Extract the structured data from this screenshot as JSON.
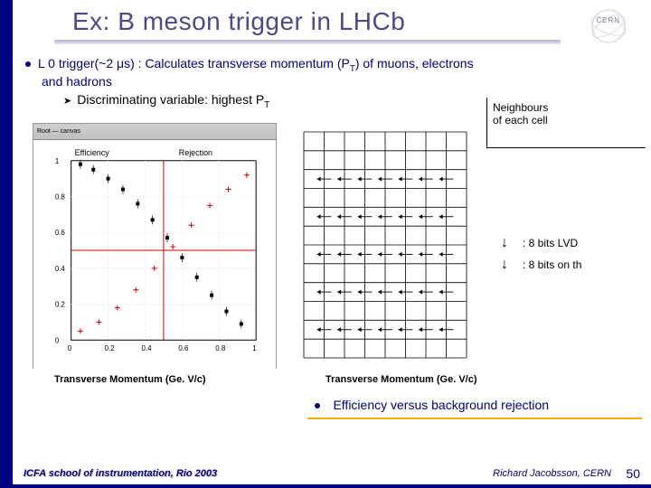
{
  "title": "Ex: B meson trigger in LHCb",
  "cern_label": "CERN",
  "bullet": {
    "line1_a": "L 0 trigger(~2 ",
    "line1_b": "s) : Calculates transverse momentum (P",
    "line1_c": ") of muons, electrons",
    "line2": "and hadrons",
    "sub": "Discriminating variable: highest P",
    "sub_sub": "T",
    "pt_sub": "T",
    "mu": "μ"
  },
  "chart_left": {
    "toolbar": "Root — canvas",
    "y_label": "Efficiency",
    "y2_label": "Rejection",
    "x_ticks": [
      "0",
      "0.2",
      "0.4",
      "0.6",
      "0.8",
      "1"
    ],
    "y_ticks": [
      "0",
      "0.2",
      "0.4",
      "0.6",
      "0.8",
      "1"
    ],
    "eff_points": [
      {
        "x": 0.05,
        "y": 0.98
      },
      {
        "x": 0.12,
        "y": 0.95
      },
      {
        "x": 0.2,
        "y": 0.9
      },
      {
        "x": 0.28,
        "y": 0.84
      },
      {
        "x": 0.36,
        "y": 0.76
      },
      {
        "x": 0.44,
        "y": 0.67
      },
      {
        "x": 0.52,
        "y": 0.57
      },
      {
        "x": 0.6,
        "y": 0.46
      },
      {
        "x": 0.68,
        "y": 0.35
      },
      {
        "x": 0.76,
        "y": 0.25
      },
      {
        "x": 0.84,
        "y": 0.16
      },
      {
        "x": 0.92,
        "y": 0.09
      }
    ],
    "rej_points": [
      {
        "x": 0.05,
        "y": 0.05
      },
      {
        "x": 0.15,
        "y": 0.1
      },
      {
        "x": 0.25,
        "y": 0.18
      },
      {
        "x": 0.35,
        "y": 0.28
      },
      {
        "x": 0.45,
        "y": 0.4
      },
      {
        "x": 0.55,
        "y": 0.52
      },
      {
        "x": 0.65,
        "y": 0.64
      },
      {
        "x": 0.75,
        "y": 0.75
      },
      {
        "x": 0.85,
        "y": 0.84
      },
      {
        "x": 0.95,
        "y": 0.92
      }
    ],
    "marker_color": "#000000",
    "cross_color": "#cc0000",
    "axis_color": "#000000",
    "grid_color": "#dddddd",
    "hline_y": 0.5,
    "hline_color": "#cc0000"
  },
  "chart_right": {
    "grid_cols": 8,
    "grid_rows": 12,
    "line_color": "#000000",
    "arrow_rows": [
      2,
      4,
      6,
      8,
      10
    ]
  },
  "legend_top": {
    "text1": "Neighbours",
    "text2": "of each cell"
  },
  "legend_bottom": {
    "row1": ": 8 bits LVD",
    "row2": ": 8 bits on th"
  },
  "captions": {
    "left": "Transverse Momentum (Ge. V/c)",
    "right": "Transverse Momentum (Ge. V/c)"
  },
  "eff_text": "Efficiency versus background rejection",
  "footer": {
    "left": "ICFA school of instrumentation, Rio 2003",
    "right": "Richard Jacobsson, CERN",
    "page": "50"
  },
  "colors": {
    "navy": "#000080",
    "orange": "#ffaa00"
  }
}
